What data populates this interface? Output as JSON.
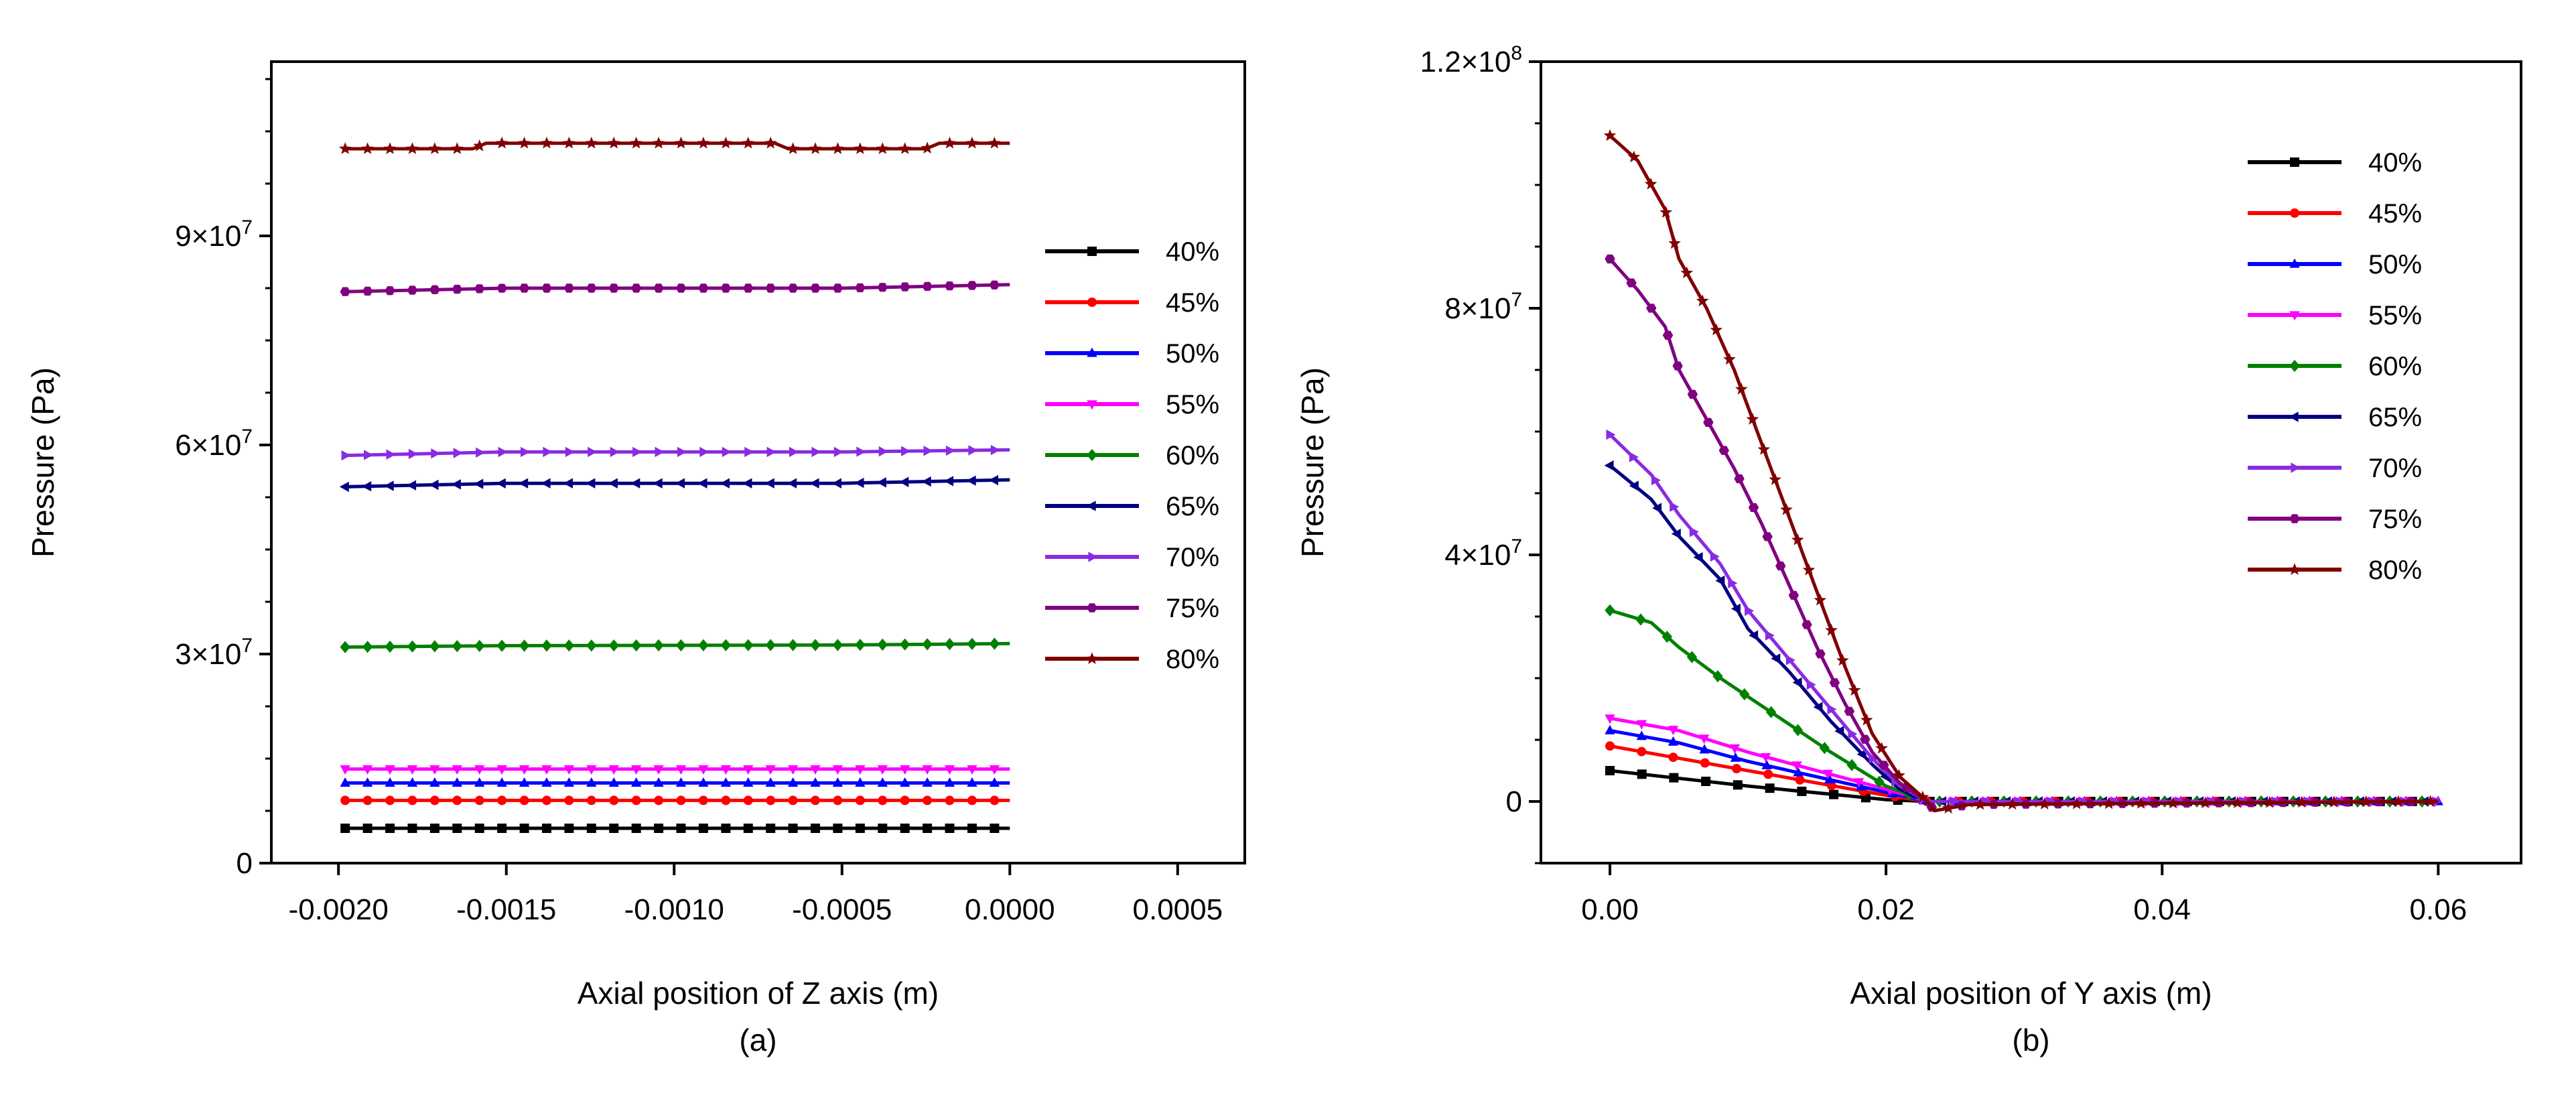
{
  "chart_data": [
    {
      "type": "line",
      "panel_label": "(a)",
      "xlabel": "Axial position of Z axis (m)",
      "ylabel": "Pressure (Pa)",
      "xlim": [
        -0.0022,
        0.0007
      ],
      "ylim": [
        0,
        115000000
      ],
      "xticks": [
        {
          "v": -0.002,
          "label": "-0.0020"
        },
        {
          "v": -0.0015,
          "label": "-0.0015"
        },
        {
          "v": -0.001,
          "label": "-0.0010"
        },
        {
          "v": -0.0005,
          "label": "-0.0005"
        },
        {
          "v": 0.0,
          "label": "0.0000"
        },
        {
          "v": 0.0005,
          "label": "0.0005"
        }
      ],
      "yticks": [
        {
          "v": 0,
          "base": "0",
          "exp": ""
        },
        {
          "v": 30000000,
          "base": "3×10",
          "exp": "7"
        },
        {
          "v": 60000000,
          "base": "6×10",
          "exp": "7"
        },
        {
          "v": 90000000,
          "base": "9×10",
          "exp": "7"
        }
      ],
      "y_minor_step": 7500000,
      "legend_position": "right",
      "grid": false,
      "series": [
        {
          "name": "40%",
          "color": "#000000",
          "marker": "square",
          "points": [
            [
              -0.00198,
              5000000
            ],
            [
              0.0,
              5000000
            ]
          ]
        },
        {
          "name": "45%",
          "color": "#ff0000",
          "marker": "circle",
          "points": [
            [
              -0.00198,
              9000000
            ],
            [
              0.0,
              9000000
            ]
          ]
        },
        {
          "name": "50%",
          "color": "#0000ff",
          "marker": "triangle-up",
          "points": [
            [
              -0.00198,
              11500000
            ],
            [
              0.0,
              11500000
            ]
          ]
        },
        {
          "name": "55%",
          "color": "#ff00ff",
          "marker": "triangle-down",
          "points": [
            [
              -0.00198,
              13500000
            ],
            [
              0.0,
              13500000
            ]
          ]
        },
        {
          "name": "60%",
          "color": "#008000",
          "marker": "diamond",
          "points": [
            [
              -0.00198,
              31000000
            ],
            [
              -0.0015,
              31200000
            ],
            [
              -0.0005,
              31300000
            ],
            [
              0.0,
              31500000
            ]
          ]
        },
        {
          "name": "65%",
          "color": "#000080",
          "marker": "triangle-left",
          "points": [
            [
              -0.00198,
              54000000
            ],
            [
              -0.0015,
              54500000
            ],
            [
              -0.0005,
              54500000
            ],
            [
              0.0,
              55000000
            ]
          ]
        },
        {
          "name": "70%",
          "color": "#8a2be2",
          "marker": "triangle-right",
          "points": [
            [
              -0.00198,
              58500000
            ],
            [
              -0.0015,
              59000000
            ],
            [
              -0.0005,
              59000000
            ],
            [
              0.0,
              59300000
            ]
          ]
        },
        {
          "name": "75%",
          "color": "#800080",
          "marker": "hexagon",
          "points": [
            [
              -0.00198,
              82000000
            ],
            [
              -0.0015,
              82500000
            ],
            [
              -0.0005,
              82500000
            ],
            [
              0.0,
              83000000
            ]
          ]
        },
        {
          "name": "80%",
          "color": "#800000",
          "marker": "star",
          "points": [
            [
              -0.00198,
              102500000
            ],
            [
              -0.0016,
              102500000
            ],
            [
              -0.00156,
              103300000
            ],
            [
              -0.0007,
              103300000
            ],
            [
              -0.00066,
              102500000
            ],
            [
              -0.00025,
              102500000
            ],
            [
              -0.00021,
              103300000
            ],
            [
              0.0,
              103300000
            ]
          ]
        }
      ]
    },
    {
      "type": "line",
      "panel_label": "(b)",
      "xlabel": "Axial position of Y axis (m)",
      "ylabel": "Pressure (Pa)",
      "xlim": [
        -0.005,
        0.066
      ],
      "ylim": [
        -10000000,
        120000000
      ],
      "xticks": [
        {
          "v": 0.0,
          "label": "0.00"
        },
        {
          "v": 0.02,
          "label": "0.02"
        },
        {
          "v": 0.04,
          "label": "0.04"
        },
        {
          "v": 0.06,
          "label": "0.06"
        }
      ],
      "yticks": [
        {
          "v": 0,
          "base": "0",
          "exp": ""
        },
        {
          "v": 40000000,
          "base": "4×10",
          "exp": "7"
        },
        {
          "v": 80000000,
          "base": "8×10",
          "exp": "7"
        },
        {
          "v": 120000000,
          "base": "1.2×10",
          "exp": "8"
        }
      ],
      "y_minor_step": 10000000,
      "legend_position": "top-right",
      "grid": false,
      "series": [
        {
          "name": "40%",
          "color": "#000000",
          "marker": "square",
          "points": [
            [
              0.0,
              5000000
            ],
            [
              0.01,
              2500000
            ],
            [
              0.02,
              300000
            ],
            [
              0.023,
              0
            ],
            [
              0.06,
              0
            ]
          ]
        },
        {
          "name": "45%",
          "color": "#ff0000",
          "marker": "circle",
          "points": [
            [
              0.0,
              9000000
            ],
            [
              0.005,
              7000000
            ],
            [
              0.01,
              5000000
            ],
            [
              0.015,
              3000000
            ],
            [
              0.02,
              1000000
            ],
            [
              0.023,
              0
            ],
            [
              0.06,
              0
            ]
          ]
        },
        {
          "name": "50%",
          "color": "#0000ff",
          "marker": "triangle-up",
          "points": [
            [
              0.0,
              11500000
            ],
            [
              0.005,
              9500000
            ],
            [
              0.01,
              6500000
            ],
            [
              0.015,
              4000000
            ],
            [
              0.02,
              1500000
            ],
            [
              0.023,
              0
            ],
            [
              0.06,
              0
            ]
          ]
        },
        {
          "name": "55%",
          "color": "#ff00ff",
          "marker": "triangle-down",
          "points": [
            [
              0.0,
              13500000
            ],
            [
              0.005,
              11500000
            ],
            [
              0.01,
              8000000
            ],
            [
              0.015,
              5000000
            ],
            [
              0.02,
              2000000
            ],
            [
              0.023,
              0
            ],
            [
              0.06,
              0
            ]
          ]
        },
        {
          "name": "60%",
          "color": "#008000",
          "marker": "diamond",
          "points": [
            [
              0.0,
              31000000
            ],
            [
              0.003,
              29000000
            ],
            [
              0.005,
              25000000
            ],
            [
              0.008,
              20000000
            ],
            [
              0.012,
              14000000
            ],
            [
              0.016,
              8000000
            ],
            [
              0.02,
              2500000
            ],
            [
              0.023,
              0
            ],
            [
              0.06,
              0
            ]
          ]
        },
        {
          "name": "65%",
          "color": "#000080",
          "marker": "triangle-left",
          "points": [
            [
              0.0,
              54500000
            ],
            [
              0.003,
              49000000
            ],
            [
              0.005,
              43000000
            ],
            [
              0.008,
              36000000
            ],
            [
              0.01,
              28000000
            ],
            [
              0.013,
              21000000
            ],
            [
              0.016,
              13000000
            ],
            [
              0.019,
              6000000
            ],
            [
              0.021,
              2000000
            ],
            [
              0.023,
              0
            ],
            [
              0.06,
              0
            ]
          ]
        },
        {
          "name": "70%",
          "color": "#8a2be2",
          "marker": "triangle-right",
          "points": [
            [
              0.0,
              59500000
            ],
            [
              0.003,
              53000000
            ],
            [
              0.005,
              46500000
            ],
            [
              0.008,
              38500000
            ],
            [
              0.01,
              31000000
            ],
            [
              0.013,
              23000000
            ],
            [
              0.016,
              15000000
            ],
            [
              0.019,
              7000000
            ],
            [
              0.021,
              2500000
            ],
            [
              0.023,
              0
            ],
            [
              0.06,
              0
            ]
          ]
        },
        {
          "name": "75%",
          "color": "#800080",
          "marker": "hexagon",
          "points": [
            [
              0.0,
              88000000
            ],
            [
              0.002,
              83000000
            ],
            [
              0.004,
              77000000
            ],
            [
              0.005,
              70000000
            ],
            [
              0.007,
              62000000
            ],
            [
              0.009,
              54000000
            ],
            [
              0.011,
              45000000
            ],
            [
              0.013,
              35000000
            ],
            [
              0.015,
              25000000
            ],
            [
              0.017,
              16000000
            ],
            [
              0.019,
              8000000
            ],
            [
              0.021,
              3000000
            ],
            [
              0.023,
              0
            ],
            [
              0.0235,
              -1500000
            ],
            [
              0.026,
              -500000
            ],
            [
              0.06,
              0
            ]
          ]
        },
        {
          "name": "80%",
          "color": "#800000",
          "marker": "star",
          "points": [
            [
              0.0,
              108000000
            ],
            [
              0.002,
              104000000
            ],
            [
              0.003,
              100000000
            ],
            [
              0.004,
              96000000
            ],
            [
              0.005,
              88000000
            ],
            [
              0.007,
              80000000
            ],
            [
              0.009,
              70000000
            ],
            [
              0.011,
              58000000
            ],
            [
              0.013,
              46000000
            ],
            [
              0.015,
              34000000
            ],
            [
              0.017,
              22000000
            ],
            [
              0.019,
              11000000
            ],
            [
              0.021,
              4000000
            ],
            [
              0.023,
              0
            ],
            [
              0.0235,
              -1500000
            ],
            [
              0.026,
              -500000
            ],
            [
              0.06,
              0
            ]
          ]
        }
      ]
    }
  ]
}
